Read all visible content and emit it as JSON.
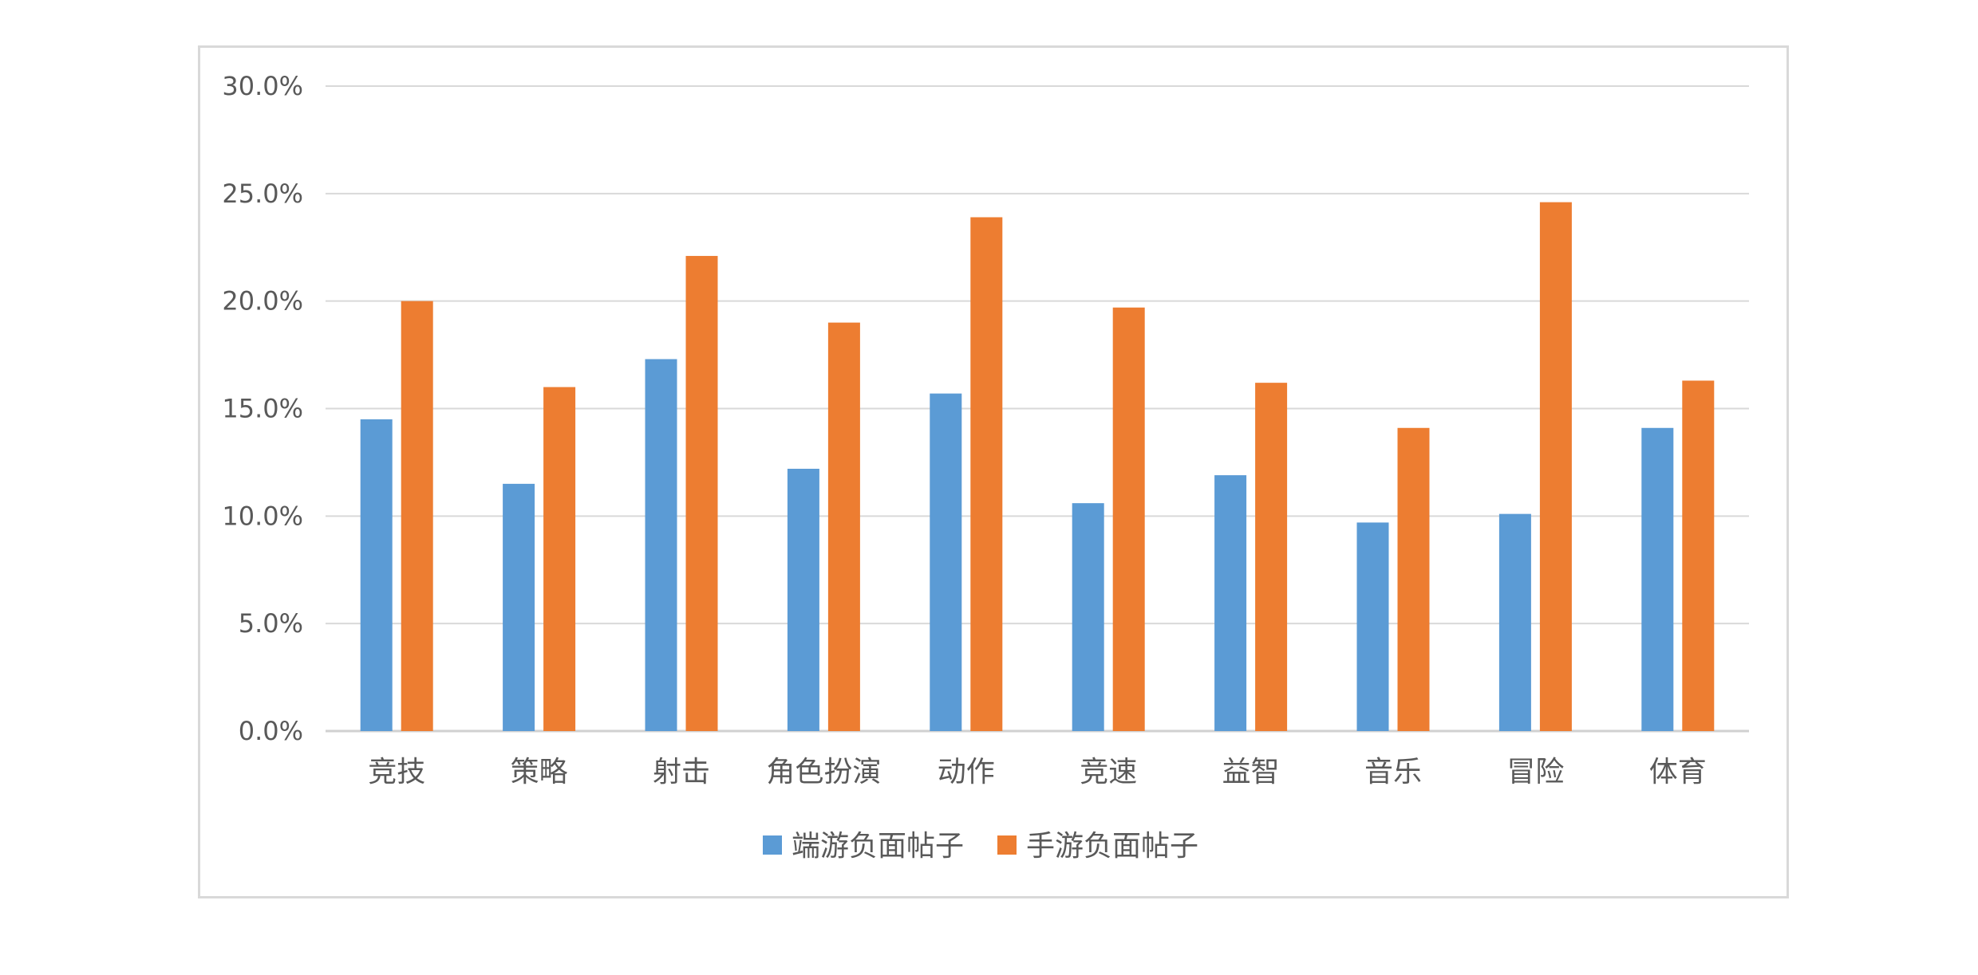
{
  "chart_data": {
    "type": "bar",
    "categories": [
      "竞技",
      "策略",
      "射击",
      "角色扮演",
      "动作",
      "竞速",
      "益智",
      "音乐",
      "冒险",
      "体育"
    ],
    "series": [
      {
        "name": "端游负面帖子",
        "color": "#5b9bd5",
        "values": [
          14.5,
          11.5,
          17.3,
          12.2,
          15.7,
          10.6,
          11.9,
          9.7,
          10.1,
          14.1
        ]
      },
      {
        "name": "手游负面帖子",
        "color": "#ed7d31",
        "values": [
          20.0,
          16.0,
          22.1,
          19.0,
          23.9,
          19.7,
          16.2,
          14.1,
          24.6,
          16.3
        ]
      }
    ],
    "ylim": [
      0,
      30
    ],
    "y_ticks": [
      "0.0%",
      "5.0%",
      "10.0%",
      "15.0%",
      "20.0%",
      "25.0%",
      "30.0%"
    ],
    "grid": true,
    "legend_position": "bottom"
  }
}
